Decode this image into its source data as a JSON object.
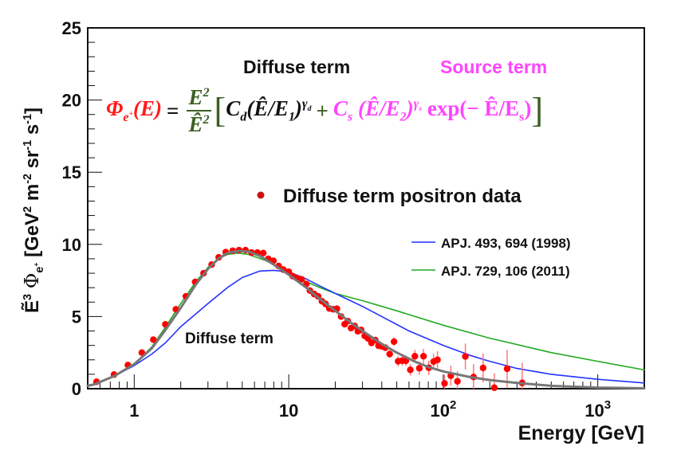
{
  "chart_data": {
    "type": "scatter",
    "xlabel": "Energy [GeV]",
    "ylabel": {
      "main": "Ẽ",
      "main_sup": "3",
      "phi": "Φ",
      "phi_sub": "e",
      "phi_subsup": "+",
      "units": "[GeV",
      "u1": "2",
      "m": " m",
      "u2": "-2",
      "sr": " sr",
      "u3": "-1",
      "s": " s",
      "u4": "-1",
      "close": "]"
    },
    "xscale": "log",
    "xlim": [
      0.5,
      2000
    ],
    "ylim": [
      0,
      25
    ],
    "x_ticks": [
      {
        "value": 1,
        "base": "1",
        "exp": ""
      },
      {
        "value": 10,
        "base": "10",
        "exp": ""
      },
      {
        "value": 100,
        "base": "10",
        "exp": "2"
      },
      {
        "value": 1000,
        "base": "10",
        "exp": "3"
      }
    ],
    "y_ticks": [
      "0",
      "5",
      "10",
      "15",
      "20",
      "25"
    ],
    "grid": false,
    "legend": {
      "placement": "right",
      "data_label": "Diffuse term positron data",
      "entries": [
        "APJ. 493, 694 (1998)",
        "APJ. 729, 106 (2011)"
      ]
    },
    "annotations": {
      "diffuse_curve_label": "Diffuse term",
      "diffuse_header": "Diffuse term",
      "source_header": "Source term"
    },
    "colors": {
      "data": "#ff0000",
      "fit": "#777777",
      "apj1998": "#2233ff",
      "apj2011": "#22aa22",
      "formula_green": "#3b5e22",
      "source": "#ff44ff"
    },
    "series": [
      {
        "name": "Diffuse term positron data",
        "kind": "points",
        "x": [
          0.57,
          0.74,
          0.91,
          1.12,
          1.33,
          1.59,
          1.86,
          2.16,
          2.48,
          2.81,
          3.17,
          3.52,
          3.91,
          4.34,
          4.77,
          5.25,
          5.74,
          6.27,
          6.84,
          7.37,
          7.96,
          8.6,
          9.23,
          10.0,
          10.6,
          11.3,
          12.1,
          13.0,
          13.7,
          14.6,
          15.5,
          16.4,
          17.3,
          18.3,
          19.4,
          20.5,
          21.8,
          23.0,
          24.1,
          25.3,
          26.7,
          28.0,
          29.4,
          31.0,
          32.6,
          34.3,
          36.3,
          38.1,
          40.1,
          42.2,
          45.0,
          48.0,
          51.0,
          54.3,
          57.3,
          61.2,
          65.5,
          70.0,
          74.5,
          80.6,
          86.6,
          91.7,
          101.9,
          111.9,
          123.5,
          139,
          157,
          181,
          214,
          259,
          324
        ],
        "y": [
          0.48,
          0.98,
          1.64,
          2.5,
          3.4,
          4.46,
          5.5,
          6.4,
          7.4,
          8.0,
          8.6,
          9.1,
          9.46,
          9.56,
          9.6,
          9.6,
          9.43,
          9.43,
          9.4,
          9.0,
          8.86,
          8.5,
          8.25,
          8.1,
          7.8,
          7.66,
          7.58,
          7.25,
          6.8,
          6.56,
          6.4,
          6.06,
          5.87,
          5.56,
          5.5,
          5.54,
          5.0,
          4.47,
          4.68,
          4.2,
          4.35,
          3.98,
          4.07,
          3.66,
          3.48,
          3.17,
          3.37,
          2.98,
          2.93,
          2.84,
          2.4,
          3.26,
          1.9,
          1.94,
          1.94,
          1.31,
          2.25,
          1.42,
          2.25,
          1.45,
          1.88,
          2.0,
          0.37,
          0.9,
          0.51,
          2.23,
          0.81,
          1.44,
          0.07,
          1.38,
          0.4
        ],
        "yerr": [
          0.05,
          0.05,
          0.05,
          0.05,
          0.05,
          0.05,
          0.05,
          0.05,
          0.05,
          0.05,
          0.05,
          0.05,
          0.05,
          0.05,
          0.05,
          0.05,
          0.05,
          0.05,
          0.05,
          0.05,
          0.05,
          0.05,
          0.05,
          0.05,
          0.06,
          0.06,
          0.06,
          0.06,
          0.07,
          0.07,
          0.08,
          0.08,
          0.08,
          0.1,
          0.1,
          0.1,
          0.1,
          0.12,
          0.12,
          0.12,
          0.13,
          0.14,
          0.15,
          0.16,
          0.17,
          0.18,
          0.2,
          0.2,
          0.22,
          0.24,
          0.25,
          0.3,
          0.35,
          0.35,
          0.35,
          0.4,
          0.45,
          0.45,
          0.5,
          0.5,
          0.55,
          0.6,
          0.6,
          0.7,
          0.7,
          0.9,
          0.9,
          1.0,
          1.0,
          1.3,
          1.4
        ]
      },
      {
        "name": "Diffuse term",
        "kind": "line",
        "x": [
          0.5,
          0.55,
          0.75,
          1,
          1.3,
          1.6,
          2,
          2.5,
          3,
          3.5,
          4,
          4.7,
          5.5,
          6.5,
          8,
          10,
          13,
          16,
          20,
          25,
          32,
          40,
          50,
          65,
          80,
          100,
          150,
          200,
          300,
          500,
          1000,
          2000
        ],
        "y": [
          0.2,
          0.3,
          0.9,
          1.7,
          2.8,
          4.1,
          5.6,
          7.2,
          8.3,
          9.0,
          9.4,
          9.55,
          9.5,
          9.2,
          8.6,
          7.9,
          7.0,
          6.2,
          5.4,
          4.6,
          3.8,
          3.1,
          2.5,
          1.9,
          1.5,
          1.2,
          0.8,
          0.6,
          0.4,
          0.2,
          0.08,
          0.03
        ]
      },
      {
        "name": "APJ. 493, 694 (1998)",
        "kind": "line",
        "x": [
          0.5,
          0.55,
          0.75,
          1,
          1.3,
          1.6,
          2,
          3,
          4,
          5,
          6.5,
          8,
          10,
          13,
          16,
          20,
          30,
          40,
          60,
          100,
          150,
          200,
          300,
          500,
          1000,
          2000
        ],
        "y": [
          0.2,
          0.3,
          0.9,
          1.6,
          2.4,
          3.2,
          4.3,
          5.9,
          7.0,
          7.7,
          8.15,
          8.2,
          8.1,
          7.6,
          7.1,
          6.6,
          5.7,
          5.0,
          4.0,
          3.0,
          2.3,
          1.9,
          1.4,
          1.0,
          0.65,
          0.4
        ]
      },
      {
        "name": "APJ. 729, 106 (2011)",
        "kind": "line",
        "x": [
          0.5,
          0.55,
          0.75,
          1,
          1.3,
          1.6,
          2,
          2.5,
          3,
          3.5,
          4,
          4.7,
          5.5,
          7,
          10,
          13,
          16,
          20,
          30,
          50,
          100,
          200,
          500,
          1000,
          2000
        ],
        "y": [
          0.2,
          0.3,
          0.9,
          1.7,
          2.9,
          4.3,
          5.9,
          7.4,
          8.4,
          9.0,
          9.3,
          9.4,
          9.3,
          8.9,
          8.1,
          7.4,
          7.0,
          6.6,
          6.1,
          5.4,
          4.4,
          3.5,
          2.5,
          1.9,
          1.3
        ]
      }
    ]
  },
  "formula": {
    "phi": "Φ",
    "phi_sub": "e",
    "phi_subsup": "+",
    "arg": "(E)",
    "eq": "=",
    "num": "E",
    "num_sup": "2",
    "den": "Ê",
    "den_sup": "2",
    "lbracket": "[",
    "cd": "C",
    "cd_sub": "d",
    "dterm": "(Ê/E",
    "dterm_sub": "1",
    "dterm_close": ")",
    "gd": "γ",
    "gd_sub": "d",
    "plus": "+",
    "cs": "C",
    "cs_sub": "s",
    "sterm": " (Ê/E",
    "sterm_sub": "2",
    "sterm_close": ")",
    "gs": "γ",
    "gs_sub": "s",
    "exp": "exp(− Ê/E",
    "exp_sub": "s",
    "exp_close": ")",
    "rbracket": "]"
  }
}
